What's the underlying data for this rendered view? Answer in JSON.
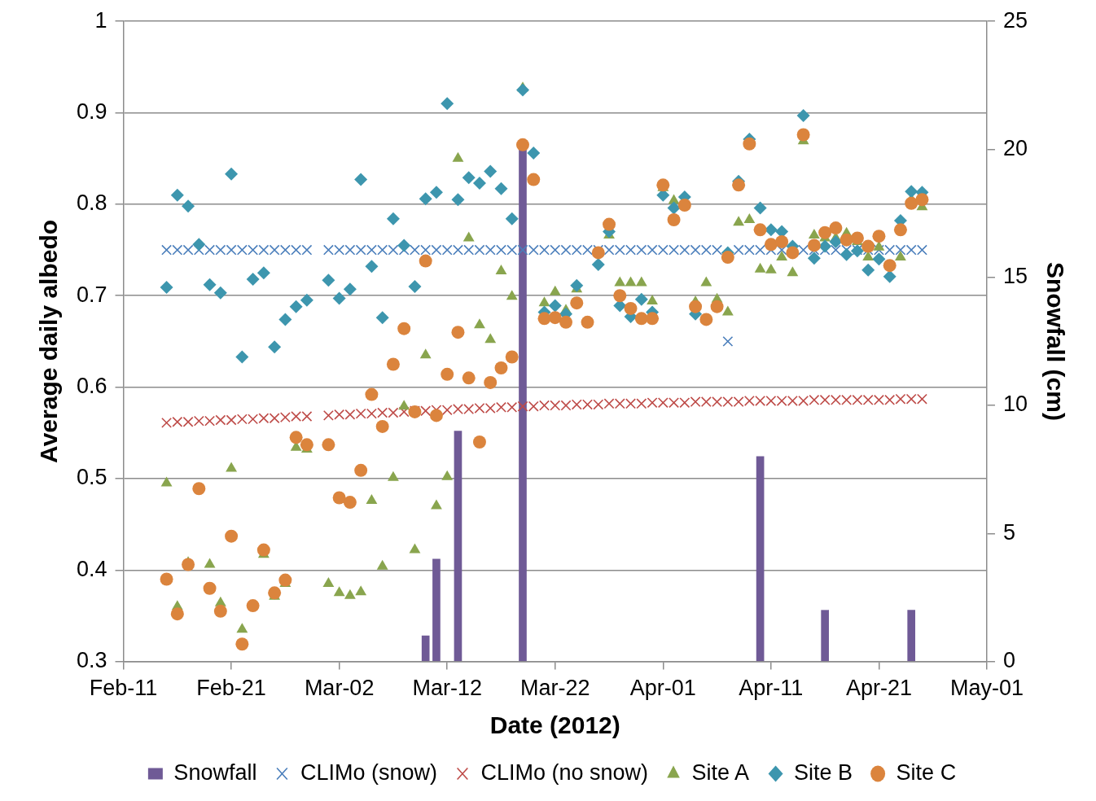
{
  "chart_data": {
    "type": "scatter",
    "xlabel": "Date (2012)",
    "ylabel": "Average daily albedo",
    "y2label": "Snowfall (cm)",
    "x": [
      "2012-02-15",
      "2012-02-16",
      "2012-02-17",
      "2012-02-18",
      "2012-02-19",
      "2012-02-20",
      "2012-02-21",
      "2012-02-22",
      "2012-02-23",
      "2012-02-24",
      "2012-02-25",
      "2012-02-26",
      "2012-02-27",
      "2012-02-28",
      "2012-02-29",
      "2012-03-01",
      "2012-03-02",
      "2012-03-03",
      "2012-03-04",
      "2012-03-05",
      "2012-03-06",
      "2012-03-07",
      "2012-03-08",
      "2012-03-09",
      "2012-03-10",
      "2012-03-11",
      "2012-03-12",
      "2012-03-13",
      "2012-03-14",
      "2012-03-15",
      "2012-03-16",
      "2012-03-17",
      "2012-03-18",
      "2012-03-19",
      "2012-03-20",
      "2012-03-21",
      "2012-03-22",
      "2012-03-23",
      "2012-03-24",
      "2012-03-25",
      "2012-03-26",
      "2012-03-27",
      "2012-03-28",
      "2012-03-29",
      "2012-03-30",
      "2012-03-31",
      "2012-04-01",
      "2012-04-02",
      "2012-04-03",
      "2012-04-04",
      "2012-04-05",
      "2012-04-06",
      "2012-04-07",
      "2012-04-08",
      "2012-04-09",
      "2012-04-10",
      "2012-04-11",
      "2012-04-12",
      "2012-04-13",
      "2012-04-14",
      "2012-04-15",
      "2012-04-16",
      "2012-04-17",
      "2012-04-18",
      "2012-04-19",
      "2012-04-20",
      "2012-04-21",
      "2012-04-22",
      "2012-04-23",
      "2012-04-24",
      "2012-04-25"
    ],
    "series": [
      {
        "name": "Snowfall",
        "type": "bar",
        "axis": "y2",
        "color": "#6f5a96",
        "values": [
          null,
          null,
          null,
          null,
          null,
          null,
          null,
          null,
          null,
          null,
          null,
          null,
          null,
          null,
          null,
          null,
          null,
          null,
          null,
          null,
          null,
          null,
          null,
          null,
          1,
          4,
          null,
          9,
          null,
          null,
          null,
          null,
          null,
          20,
          null,
          null,
          null,
          null,
          null,
          null,
          null,
          null,
          null,
          null,
          null,
          null,
          null,
          null,
          null,
          null,
          null,
          null,
          null,
          null,
          null,
          8,
          null,
          null,
          null,
          null,
          null,
          2,
          null,
          null,
          null,
          null,
          null,
          null,
          null,
          2,
          null
        ]
      },
      {
        "name": "CLIMo (snow)",
        "color": "#4a7ebb",
        "marker": "cross",
        "values": [
          0.75,
          0.75,
          0.75,
          0.75,
          0.75,
          0.75,
          0.75,
          0.75,
          0.75,
          0.75,
          0.75,
          0.75,
          0.75,
          0.75,
          null,
          0.75,
          0.75,
          0.75,
          0.75,
          0.75,
          0.75,
          0.75,
          0.75,
          0.75,
          0.75,
          0.75,
          0.75,
          0.75,
          0.75,
          0.75,
          0.75,
          0.75,
          0.75,
          0.75,
          0.75,
          0.75,
          0.75,
          0.75,
          0.75,
          0.75,
          0.75,
          0.75,
          0.75,
          0.75,
          0.75,
          0.75,
          0.75,
          0.75,
          0.75,
          0.75,
          0.75,
          0.75,
          0.65,
          0.75,
          0.75,
          0.75,
          0.75,
          0.75,
          null,
          0.75,
          0.75,
          0.75,
          0.75,
          0.75,
          0.75,
          0.75,
          0.75,
          0.75,
          0.75,
          0.75,
          0.75
        ]
      },
      {
        "name": "CLIMo (no snow)",
        "color": "#be4b48",
        "marker": "cross",
        "values": [
          0.561,
          0.562,
          0.562,
          0.563,
          0.563,
          0.564,
          0.564,
          0.565,
          0.565,
          0.566,
          0.566,
          0.567,
          0.568,
          0.568,
          null,
          0.569,
          0.57,
          0.57,
          0.571,
          0.571,
          0.572,
          0.572,
          0.573,
          0.574,
          0.574,
          0.575,
          0.575,
          0.576,
          0.576,
          0.577,
          0.577,
          0.578,
          0.578,
          0.579,
          0.579,
          0.58,
          0.58,
          0.58,
          0.581,
          0.581,
          0.581,
          0.582,
          0.582,
          0.582,
          0.582,
          0.583,
          0.583,
          0.583,
          0.583,
          0.584,
          0.584,
          0.584,
          0.584,
          0.584,
          0.585,
          0.585,
          0.585,
          0.585,
          0.585,
          0.585,
          0.586,
          0.586,
          0.586,
          0.586,
          0.586,
          0.586,
          0.586,
          0.586,
          0.587,
          0.587,
          0.587
        ]
      },
      {
        "name": "Site A",
        "color": "#89a54e",
        "marker": "triangle",
        "values": [
          0.495,
          0.36,
          0.408,
          null,
          0.406,
          0.364,
          0.511,
          0.335,
          null,
          0.417,
          0.371,
          0.385,
          0.534,
          0.532,
          null,
          0.385,
          0.375,
          0.372,
          0.376,
          0.476,
          0.404,
          0.501,
          0.579,
          0.422,
          0.635,
          0.47,
          0.502,
          0.85,
          0.763,
          0.668,
          0.652,
          0.727,
          0.699,
          0.927,
          null,
          0.692,
          0.704,
          0.684,
          0.707,
          null,
          null,
          0.766,
          0.714,
          0.714,
          0.714,
          0.694,
          0.818,
          0.804,
          null,
          0.693,
          0.714,
          0.696,
          0.682,
          0.78,
          0.783,
          0.729,
          0.728,
          0.742,
          0.725,
          0.869,
          0.766,
          0.763,
          0.763,
          0.768,
          0.759,
          0.742,
          0.753,
          null,
          0.742,
          0.805,
          0.797
        ]
      },
      {
        "name": "Site B",
        "color": "#3d96ae",
        "marker": "diamond",
        "values": [
          0.709,
          0.81,
          0.798,
          0.756,
          0.712,
          0.703,
          0.833,
          0.633,
          0.718,
          0.725,
          0.644,
          0.674,
          0.688,
          0.695,
          null,
          0.717,
          0.697,
          0.707,
          0.827,
          0.732,
          0.676,
          0.784,
          0.755,
          0.71,
          0.806,
          0.813,
          0.91,
          0.805,
          0.829,
          0.823,
          0.836,
          0.817,
          0.784,
          0.925,
          0.856,
          0.682,
          0.689,
          0.68,
          0.711,
          null,
          0.734,
          0.77,
          0.689,
          0.677,
          0.696,
          0.682,
          0.81,
          0.796,
          0.808,
          0.68,
          null,
          null,
          0.747,
          0.825,
          0.871,
          0.796,
          0.772,
          0.77,
          0.754,
          0.897,
          0.741,
          0.754,
          0.759,
          0.745,
          0.749,
          0.728,
          0.74,
          0.721,
          0.782,
          0.814,
          0.813
        ]
      },
      {
        "name": "Site C",
        "color": "#db843d",
        "marker": "circle",
        "values": [
          0.39,
          0.352,
          0.406,
          0.489,
          0.38,
          0.355,
          0.437,
          0.319,
          0.361,
          0.422,
          0.375,
          0.389,
          0.545,
          0.537,
          null,
          0.537,
          0.479,
          0.474,
          0.509,
          0.592,
          0.557,
          0.625,
          0.664,
          0.573,
          0.738,
          0.569,
          0.614,
          0.66,
          0.61,
          0.54,
          0.605,
          0.621,
          0.633,
          0.865,
          0.827,
          0.675,
          0.676,
          0.671,
          0.692,
          0.671,
          0.747,
          0.778,
          0.7,
          0.686,
          0.675,
          0.675,
          0.821,
          0.783,
          0.799,
          0.688,
          0.674,
          0.688,
          0.742,
          0.821,
          0.866,
          0.772,
          0.756,
          0.759,
          0.747,
          0.876,
          0.755,
          0.769,
          0.774,
          0.761,
          0.763,
          0.754,
          0.765,
          0.733,
          0.772,
          0.801,
          0.805
        ]
      }
    ],
    "xlim": [
      "2012-02-11",
      "2012-05-01"
    ],
    "xticks": [
      {
        "value": "2012-02-11",
        "label": "Feb-11"
      },
      {
        "value": "2012-02-21",
        "label": "Feb-21"
      },
      {
        "value": "2012-03-02",
        "label": "Mar-02"
      },
      {
        "value": "2012-03-12",
        "label": "Mar-12"
      },
      {
        "value": "2012-03-22",
        "label": "Mar-22"
      },
      {
        "value": "2012-04-01",
        "label": "Apr-01"
      },
      {
        "value": "2012-04-11",
        "label": "Apr-11"
      },
      {
        "value": "2012-04-21",
        "label": "Apr-21"
      },
      {
        "value": "2012-05-01",
        "label": "May-01"
      }
    ],
    "ylim": [
      0.3,
      1
    ],
    "yticks": [
      0.3,
      0.4,
      0.5,
      0.6,
      0.7,
      0.8,
      0.9,
      1
    ],
    "y2lim": [
      0,
      25
    ],
    "y2ticks": [
      0,
      5,
      10,
      15,
      20,
      25
    ],
    "grid": "y",
    "legend": "bottom"
  }
}
